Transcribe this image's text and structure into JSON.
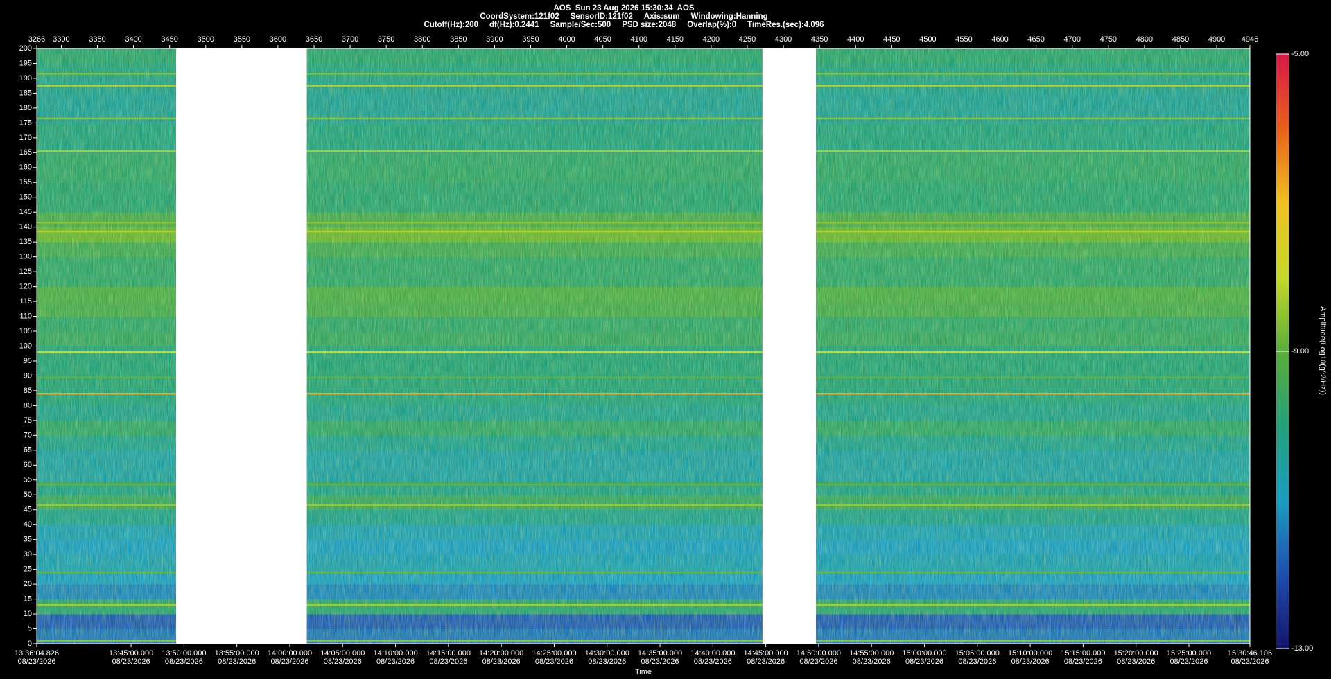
{
  "chart_data": {
    "type": "spectrogram",
    "title": "AOS  Sun 23 Aug 2026 15:30:34  AOS",
    "info": [
      [
        "CoordSystem:121f02",
        "SensorID:121f02",
        "Axis:sum",
        "Windowing:Hanning"
      ],
      [
        "Cutoff(Hz):200",
        "df(Hz):0.2441",
        "Sample/Sec:500",
        "PSD size:2048",
        "Overlap(%):0",
        "TimeRes.(sec):4.096"
      ]
    ],
    "x_label": "Time",
    "colorbar_label": "Amplitude(Log10(g^2/Hz))",
    "ylim": [
      0,
      200
    ],
    "yticks": [
      0,
      5,
      10,
      15,
      20,
      25,
      30,
      35,
      40,
      45,
      50,
      55,
      60,
      65,
      70,
      75,
      80,
      85,
      90,
      95,
      100,
      105,
      110,
      115,
      120,
      125,
      130,
      135,
      140,
      145,
      150,
      155,
      160,
      165,
      170,
      175,
      180,
      185,
      190,
      195,
      200
    ],
    "x2lim": [
      3266,
      4946
    ],
    "x2ticks": [
      3266,
      3300,
      3350,
      3400,
      3450,
      3500,
      3550,
      3600,
      3650,
      3700,
      3750,
      3800,
      3850,
      3900,
      3950,
      4000,
      4050,
      4100,
      4150,
      4200,
      4250,
      4300,
      4350,
      4400,
      4450,
      4500,
      4550,
      4600,
      4650,
      4700,
      4750,
      4800,
      4850,
      4900,
      4946
    ],
    "xlim": [
      48964.826,
      55846.106
    ],
    "x_date": "08/23/2026",
    "xticks": [
      {
        "value": 48964.826,
        "label": "13:36:04.826"
      },
      {
        "value": 49500,
        "label": "13:45:00.000"
      },
      {
        "value": 49800,
        "label": "13:50:00.000"
      },
      {
        "value": 50100,
        "label": "13:55:00.000"
      },
      {
        "value": 50400,
        "label": "14:00:00.000"
      },
      {
        "value": 50700,
        "label": "14:05:00.000"
      },
      {
        "value": 51000,
        "label": "14:10:00.000"
      },
      {
        "value": 51300,
        "label": "14:15:00.000"
      },
      {
        "value": 51600,
        "label": "14:20:00.000"
      },
      {
        "value": 51900,
        "label": "14:25:00.000"
      },
      {
        "value": 52200,
        "label": "14:30:00.000"
      },
      {
        "value": 52500,
        "label": "14:35:00.000"
      },
      {
        "value": 52800,
        "label": "14:40:00.000"
      },
      {
        "value": 53100,
        "label": "14:45:00.000"
      },
      {
        "value": 53400,
        "label": "14:50:00.000"
      },
      {
        "value": 53700,
        "label": "14:55:00.000"
      },
      {
        "value": 54000,
        "label": "15:00:00.000"
      },
      {
        "value": 54300,
        "label": "15:05:00.000"
      },
      {
        "value": 54600,
        "label": "15:10:00.000"
      },
      {
        "value": 54900,
        "label": "15:15:00.000"
      },
      {
        "value": 55200,
        "label": "15:20:00.000"
      },
      {
        "value": 55500,
        "label": "15:25:00.000"
      },
      {
        "value": 55846.106,
        "label": "15:30:46.106"
      }
    ],
    "clim": [
      -13,
      -5
    ],
    "cticks": [
      {
        "value": -13,
        "label": "-13.00"
      },
      {
        "value": -9,
        "label": "-9.00"
      },
      {
        "value": -5,
        "label": "-5.00"
      }
    ],
    "colormap": [
      "#14146a",
      "#1f4fb0",
      "#1a9cc0",
      "#23a07a",
      "#5aae38",
      "#c6d82a",
      "#f0c020",
      "#e8601a",
      "#d81848"
    ],
    "band_edges": [
      0,
      5,
      10,
      15,
      20,
      25,
      30,
      35,
      40,
      45,
      50,
      55,
      60,
      65,
      70,
      75,
      80,
      85,
      90,
      95,
      100,
      105,
      110,
      115,
      120,
      125,
      130,
      135,
      140,
      145,
      150,
      155,
      160,
      165,
      170,
      175,
      180,
      185,
      190,
      195,
      200
    ],
    "band_values": [
      -11.5,
      -11.8,
      -9.9,
      -11.3,
      -11.0,
      -10.8,
      -11.0,
      -10.8,
      -10.3,
      -9.7,
      -10.2,
      -10.6,
      -10.6,
      -10.3,
      -9.8,
      -10.3,
      -10.1,
      -10.0,
      -10.0,
      -10.0,
      -9.7,
      -9.8,
      -9.4,
      -9.3,
      -9.8,
      -9.8,
      -9.5,
      -8.9,
      -9.4,
      -9.9,
      -9.9,
      -9.8,
      -9.8,
      -10.1,
      -10.1,
      -10.4,
      -10.4,
      -10.3,
      -10.1,
      -9.9
    ],
    "line_freqs": [
      1,
      13,
      24,
      46.5,
      53.5,
      84,
      89.5,
      98,
      138.5,
      141.5,
      165.5,
      176.5,
      187.5,
      191.5
    ],
    "line_values": [
      -8.5,
      -8.3,
      -8.8,
      -8.4,
      -8.9,
      -6.8,
      -8.9,
      -8.0,
      -8.2,
      -8.5,
      -8.3,
      -8.5,
      -8.2,
      -8.6
    ],
    "gaps": [
      [
        3459,
        3640
      ],
      [
        4271,
        4345
      ]
    ]
  }
}
